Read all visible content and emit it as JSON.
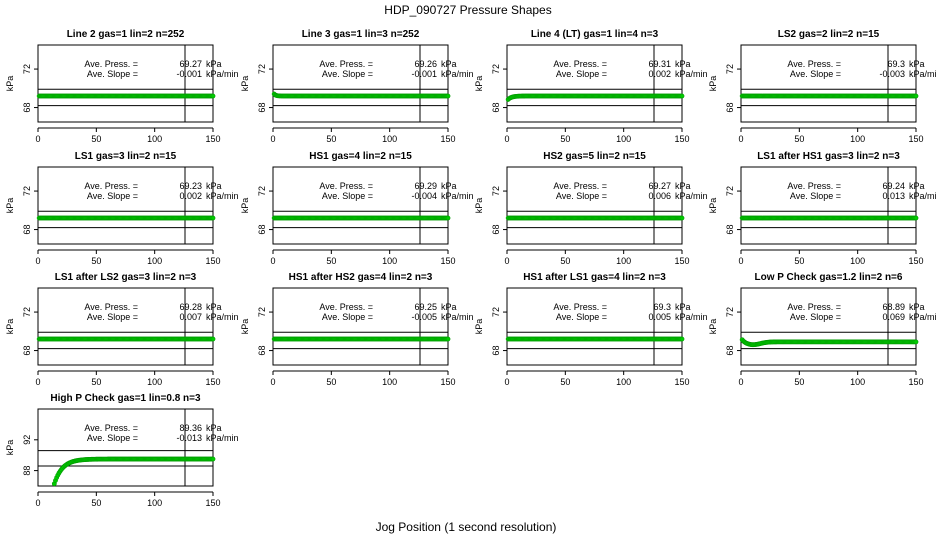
{
  "title": "HDP_090727  Pressure Shapes",
  "xlabel": "Jog Position (1 second resolution)",
  "ylabel": "kPa",
  "stats_labels": {
    "press": "Ave. Press. =",
    "slope": "Ave. Slope =",
    "press_unit": "kPa",
    "slope_unit": "kPa/min"
  },
  "colors": {
    "points": "#00cc00",
    "point_edge": "#009900",
    "lines": "#000000"
  },
  "chart_data": [
    {
      "type": "scatter",
      "title": "Line 2 gas=1 lin=2 n=252",
      "ave_press": "69.27",
      "ave_slope": "-0.001",
      "xlim": [
        0,
        150
      ],
      "ylim": [
        66.5,
        74.5
      ],
      "xticks": [
        0,
        50,
        100,
        150
      ],
      "yticks": [
        68,
        72
      ],
      "hlines": [
        68.2,
        69.9
      ],
      "vline": 126,
      "shape": {
        "kind": "flat",
        "level": 69.2
      }
    },
    {
      "type": "scatter",
      "title": "Line 3 gas=1 lin=3 n=252",
      "ave_press": "69.26",
      "ave_slope": "-0.001",
      "xlim": [
        0,
        150
      ],
      "ylim": [
        66.5,
        74.5
      ],
      "xticks": [
        0,
        50,
        100,
        150
      ],
      "yticks": [
        68,
        72
      ],
      "hlines": [
        68.2,
        69.9
      ],
      "vline": 126,
      "shape": {
        "kind": "startdip",
        "level": 69.2,
        "start": 69.6
      }
    },
    {
      "type": "scatter",
      "title": "Line 4 (LT) gas=1 lin=4 n=3",
      "ave_press": "69.31",
      "ave_slope": "0.002",
      "xlim": [
        0,
        150
      ],
      "ylim": [
        66.5,
        74.5
      ],
      "xticks": [
        0,
        50,
        100,
        150
      ],
      "yticks": [
        68,
        72
      ],
      "hlines": [
        68.2,
        69.9
      ],
      "vline": 126,
      "shape": {
        "kind": "rise",
        "level": 69.2,
        "start": 68.7
      }
    },
    {
      "type": "scatter",
      "title": "LS2 gas=2 lin=2 n=15",
      "ave_press": "69.3",
      "ave_slope": "-0.003",
      "xlim": [
        0,
        150
      ],
      "ylim": [
        66.5,
        74.5
      ],
      "xticks": [
        0,
        50,
        100,
        150
      ],
      "yticks": [
        68,
        72
      ],
      "hlines": [
        68.2,
        69.9
      ],
      "vline": 126,
      "shape": {
        "kind": "flat",
        "level": 69.2
      }
    },
    {
      "type": "scatter",
      "title": "LS1 gas=3 lin=2 n=15",
      "ave_press": "69.23",
      "ave_slope": "0.002",
      "xlim": [
        0,
        150
      ],
      "ylim": [
        66.5,
        74.5
      ],
      "xticks": [
        0,
        50,
        100,
        150
      ],
      "yticks": [
        68,
        72
      ],
      "hlines": [
        68.2,
        69.9
      ],
      "vline": 126,
      "shape": {
        "kind": "flat",
        "level": 69.2
      }
    },
    {
      "type": "scatter",
      "title": "HS1 gas=4 lin=2 n=15",
      "ave_press": "69.29",
      "ave_slope": "-0.004",
      "xlim": [
        0,
        150
      ],
      "ylim": [
        66.5,
        74.5
      ],
      "xticks": [
        0,
        50,
        100,
        150
      ],
      "yticks": [
        68,
        72
      ],
      "hlines": [
        68.2,
        69.9
      ],
      "vline": 126,
      "shape": {
        "kind": "flat",
        "level": 69.2
      }
    },
    {
      "type": "scatter",
      "title": "HS2 gas=5 lin=2 n=15",
      "ave_press": "69.27",
      "ave_slope": "0.006",
      "xlim": [
        0,
        150
      ],
      "ylim": [
        66.5,
        74.5
      ],
      "xticks": [
        0,
        50,
        100,
        150
      ],
      "yticks": [
        68,
        72
      ],
      "hlines": [
        68.2,
        69.9
      ],
      "vline": 126,
      "shape": {
        "kind": "flat",
        "level": 69.2
      }
    },
    {
      "type": "scatter",
      "title": "LS1 after HS1 gas=3 lin=2 n=3",
      "ave_press": "69.24",
      "ave_slope": "0.013",
      "xlim": [
        0,
        150
      ],
      "ylim": [
        66.5,
        74.5
      ],
      "xticks": [
        0,
        50,
        100,
        150
      ],
      "yticks": [
        68,
        72
      ],
      "hlines": [
        68.2,
        69.9
      ],
      "vline": 126,
      "shape": {
        "kind": "flat",
        "level": 69.2
      }
    },
    {
      "type": "scatter",
      "title": "LS1 after LS2 gas=3 lin=2 n=3",
      "ave_press": "69.28",
      "ave_slope": "0.007",
      "xlim": [
        0,
        150
      ],
      "ylim": [
        66.5,
        74.5
      ],
      "xticks": [
        0,
        50,
        100,
        150
      ],
      "yticks": [
        68,
        72
      ],
      "hlines": [
        68.2,
        69.9
      ],
      "vline": 126,
      "shape": {
        "kind": "flat",
        "level": 69.2
      }
    },
    {
      "type": "scatter",
      "title": "HS1 after HS2 gas=4 lin=2 n=3",
      "ave_press": "69.25",
      "ave_slope": "-0.005",
      "xlim": [
        0,
        150
      ],
      "ylim": [
        66.5,
        74.5
      ],
      "xticks": [
        0,
        50,
        100,
        150
      ],
      "yticks": [
        68,
        72
      ],
      "hlines": [
        68.2,
        69.9
      ],
      "vline": 126,
      "shape": {
        "kind": "flat",
        "level": 69.2
      }
    },
    {
      "type": "scatter",
      "title": "HS1 after LS1 gas=4 lin=2 n=3",
      "ave_press": "69.3",
      "ave_slope": "0.005",
      "xlim": [
        0,
        150
      ],
      "ylim": [
        66.5,
        74.5
      ],
      "xticks": [
        0,
        50,
        100,
        150
      ],
      "yticks": [
        68,
        72
      ],
      "hlines": [
        68.2,
        69.9
      ],
      "vline": 126,
      "shape": {
        "kind": "flat",
        "level": 69.2
      }
    },
    {
      "type": "scatter",
      "title": "Low P Check gas=1.2 lin=2 n=6",
      "ave_press": "68.89",
      "ave_slope": "0.069",
      "xlim": [
        0,
        150
      ],
      "ylim": [
        66.5,
        74.5
      ],
      "xticks": [
        0,
        50,
        100,
        150
      ],
      "yticks": [
        68,
        72
      ],
      "hlines": [
        68.2,
        69.9
      ],
      "vline": 126,
      "shape": {
        "kind": "lowdip",
        "level": 68.9,
        "start": 69.4,
        "min": 68.6
      }
    },
    {
      "type": "scatter",
      "title": "High P Check gas=1 lin=0.8 n=3",
      "ave_press": "89.36",
      "ave_slope": "-0.013",
      "xlim": [
        0,
        150
      ],
      "ylim": [
        86.0,
        96.0
      ],
      "xticks": [
        0,
        50,
        100,
        150
      ],
      "yticks": [
        88,
        92
      ],
      "hlines": [
        88.6,
        90.6
      ],
      "vline": 126,
      "shape": {
        "kind": "highrise",
        "level": 89.5,
        "start": 85.8,
        "x0": 13
      }
    }
  ]
}
